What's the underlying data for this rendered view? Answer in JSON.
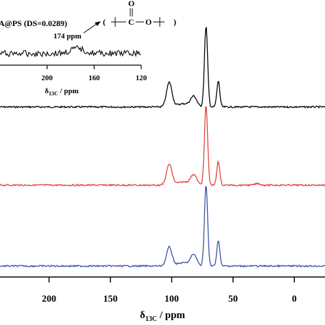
{
  "colors": {
    "spectrum_1": "#000000",
    "spectrum_2": "#e0413a",
    "spectrum_3": "#3a4fa3",
    "axis": "#000000"
  },
  "chart_data": {
    "type": "line",
    "axis": {
      "title": "δ13C / ppm",
      "title_main": "δ",
      "title_sub": "13C",
      "title_unit": " / ppm",
      "xlim": [
        240,
        -25
      ],
      "reversed": true,
      "ticks": [
        200,
        150,
        100,
        50,
        0
      ],
      "tick_labels": [
        "200",
        "150",
        "100",
        "50",
        "0"
      ]
    },
    "series": [
      {
        "color": "#000000",
        "peaks": [
          [
            102,
            0.3
          ],
          [
            82,
            0.12
          ],
          [
            72,
            1.0
          ],
          [
            62,
            0.32
          ]
        ]
      },
      {
        "color": "#e0413a",
        "peaks": [
          [
            102,
            0.26
          ],
          [
            82,
            0.12
          ],
          [
            72,
            1.0
          ],
          [
            62,
            0.3
          ]
        ]
      },
      {
        "color": "#3a4fa3",
        "peaks": [
          [
            102,
            0.23
          ],
          [
            82,
            0.13
          ],
          [
            72,
            1.0
          ],
          [
            62,
            0.32
          ]
        ]
      }
    ],
    "inset": {
      "title": "A@PS (DS=0.0289)",
      "xlim": [
        240,
        120
      ],
      "ticks": [
        200,
        160,
        120
      ],
      "tick_labels": [
        "200",
        "160",
        "120"
      ],
      "axis_title_main": "δ",
      "axis_title_sub": "13C",
      "axis_title_unit": " / ppm",
      "annotation": "174 ppm",
      "annotation_x": 174,
      "structure_left": "(",
      "structure_oxygen": "O",
      "structure_carbon": "C",
      "structure_link": "O",
      "structure_right": ")"
    }
  }
}
